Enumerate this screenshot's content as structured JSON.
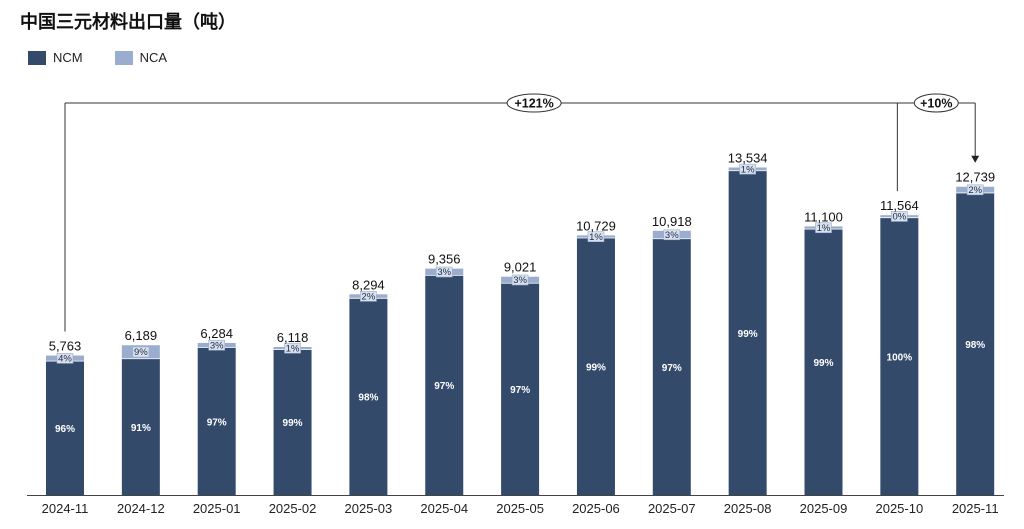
{
  "title": "中国三元材料出口量（吨）",
  "chart_data": {
    "type": "bar",
    "stacked": true,
    "title": "中国三元材料出口量（吨）",
    "categories": [
      "2024-11",
      "2024-12",
      "2025-01",
      "2025-02",
      "2025-03",
      "2025-04",
      "2025-05",
      "2025-06",
      "2025-07",
      "2025-08",
      "2025-09",
      "2025-10",
      "2025-11"
    ],
    "totals": [
      5763,
      6189,
      6284,
      6118,
      8294,
      9356,
      9021,
      10729,
      10918,
      13534,
      11100,
      11564,
      12739
    ],
    "total_labels": [
      "5,763",
      "6,189",
      "6,284",
      "6,118",
      "8,294",
      "9,356",
      "9,021",
      "10,729",
      "10,918",
      "13,534",
      "11,100",
      "11,564",
      "12,739"
    ],
    "series": [
      {
        "name": "NCM",
        "color": "#344a6b",
        "share_labels": [
          "96%",
          "91%",
          "97%",
          "99%",
          "98%",
          "97%",
          "97%",
          "99%",
          "97%",
          "99%",
          "99%",
          "100%",
          "98%"
        ],
        "share": [
          96,
          91,
          97,
          99,
          98,
          97,
          97,
          99,
          97,
          99,
          99,
          100,
          98
        ]
      },
      {
        "name": "NCA",
        "color": "#9badce",
        "share_labels": [
          "4%",
          "9%",
          "3%",
          "1%",
          "2%",
          "3%",
          "3%",
          "1%",
          "3%",
          "1%",
          "1%",
          "0%",
          "2%"
        ],
        "share": [
          4,
          9,
          3,
          1,
          2,
          3,
          3,
          1,
          3,
          1,
          1,
          0,
          2
        ]
      }
    ],
    "ylim": [
      0,
      16200
    ],
    "grid": false,
    "legend": "top-left",
    "annotations": [
      {
        "text": "+121%",
        "from": "2024-11",
        "to": "2025-11"
      },
      {
        "text": "+10%",
        "from": "2025-10",
        "to": "2025-11"
      }
    ]
  }
}
